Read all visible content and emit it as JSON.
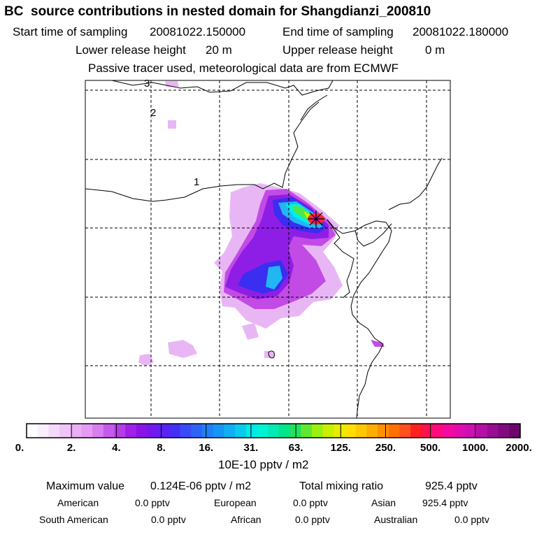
{
  "title": "BC  source contributions in nested domain for Shangdianzi_200810",
  "header": {
    "start_label": "Start time of sampling",
    "start_value": "20081022.150000",
    "end_label": "End time of sampling",
    "end_value": "20081022.180000",
    "lower_label": "Lower release height",
    "lower_value": "20 m",
    "upper_label": "Upper release height",
    "upper_value": "0 m",
    "tracer_note": "Passive tracer used, meteorological data are from ECMWF"
  },
  "map": {
    "contour_labels": [
      "1",
      "2",
      "3"
    ],
    "receptor_marker": "asterisk",
    "plume_colors": {
      "light_purple": "#e8b6f5",
      "purple": "#c34be5",
      "deep_purple": "#8e1ee6",
      "blue": "#3a2ef0",
      "sky_blue": "#22b6f5",
      "cyan": "#00f0e8",
      "green": "#4be64b",
      "yellow_green": "#c8f000",
      "red": "#ff2a1e",
      "magenta": "#ff0aa8"
    }
  },
  "colorbar": {
    "tick_labels": [
      "0.",
      "2.",
      "4.",
      "8.",
      "16.",
      "31.",
      "63.",
      "125.",
      "250.",
      "500.",
      "1000.",
      "2000."
    ],
    "colors": [
      "#ffffff",
      "#fbeefe",
      "#f5d9fb",
      "#efc5f7",
      "#e9aef3",
      "#e79af3",
      "#d77ef0",
      "#c55bed",
      "#b53cea",
      "#a11fe6",
      "#8a14e8",
      "#7418ee",
      "#5a22f2",
      "#4430f5",
      "#3a4af6",
      "#2f63f6",
      "#207ff6",
      "#1496f5",
      "#0eb0f2",
      "#0acaee",
      "#00e8e8",
      "#00f2d4",
      "#00eab4",
      "#00e48a",
      "#20e060",
      "#60e830",
      "#9af010",
      "#c8f000",
      "#e8ec00",
      "#ffe000",
      "#ffc800",
      "#ffae00",
      "#ff9000",
      "#ff7000",
      "#ff5020",
      "#ff2020",
      "#ff1050",
      "#ff0a80",
      "#f20aa0",
      "#e00cb0",
      "#cc10b4",
      "#b410a6",
      "#9a0c92",
      "#820a80",
      "#6a086a"
    ],
    "units": "10E-10 pptv / m2"
  },
  "footer": {
    "max_label": "Maximum value",
    "max_value": "0.124E-06 pptv / m2",
    "total_label": "Total mixing ratio",
    "total_value": "925.4 pptv",
    "regions": [
      {
        "name": "American",
        "value": "0.0 pptv"
      },
      {
        "name": "European",
        "value": "0.0 pptv"
      },
      {
        "name": "Asian",
        "value": "925.4 pptv"
      },
      {
        "name": "South American",
        "value": "0.0 pptv"
      },
      {
        "name": "African",
        "value": "0.0 pptv"
      },
      {
        "name": "Australian",
        "value": "0.0 pptv"
      }
    ]
  }
}
